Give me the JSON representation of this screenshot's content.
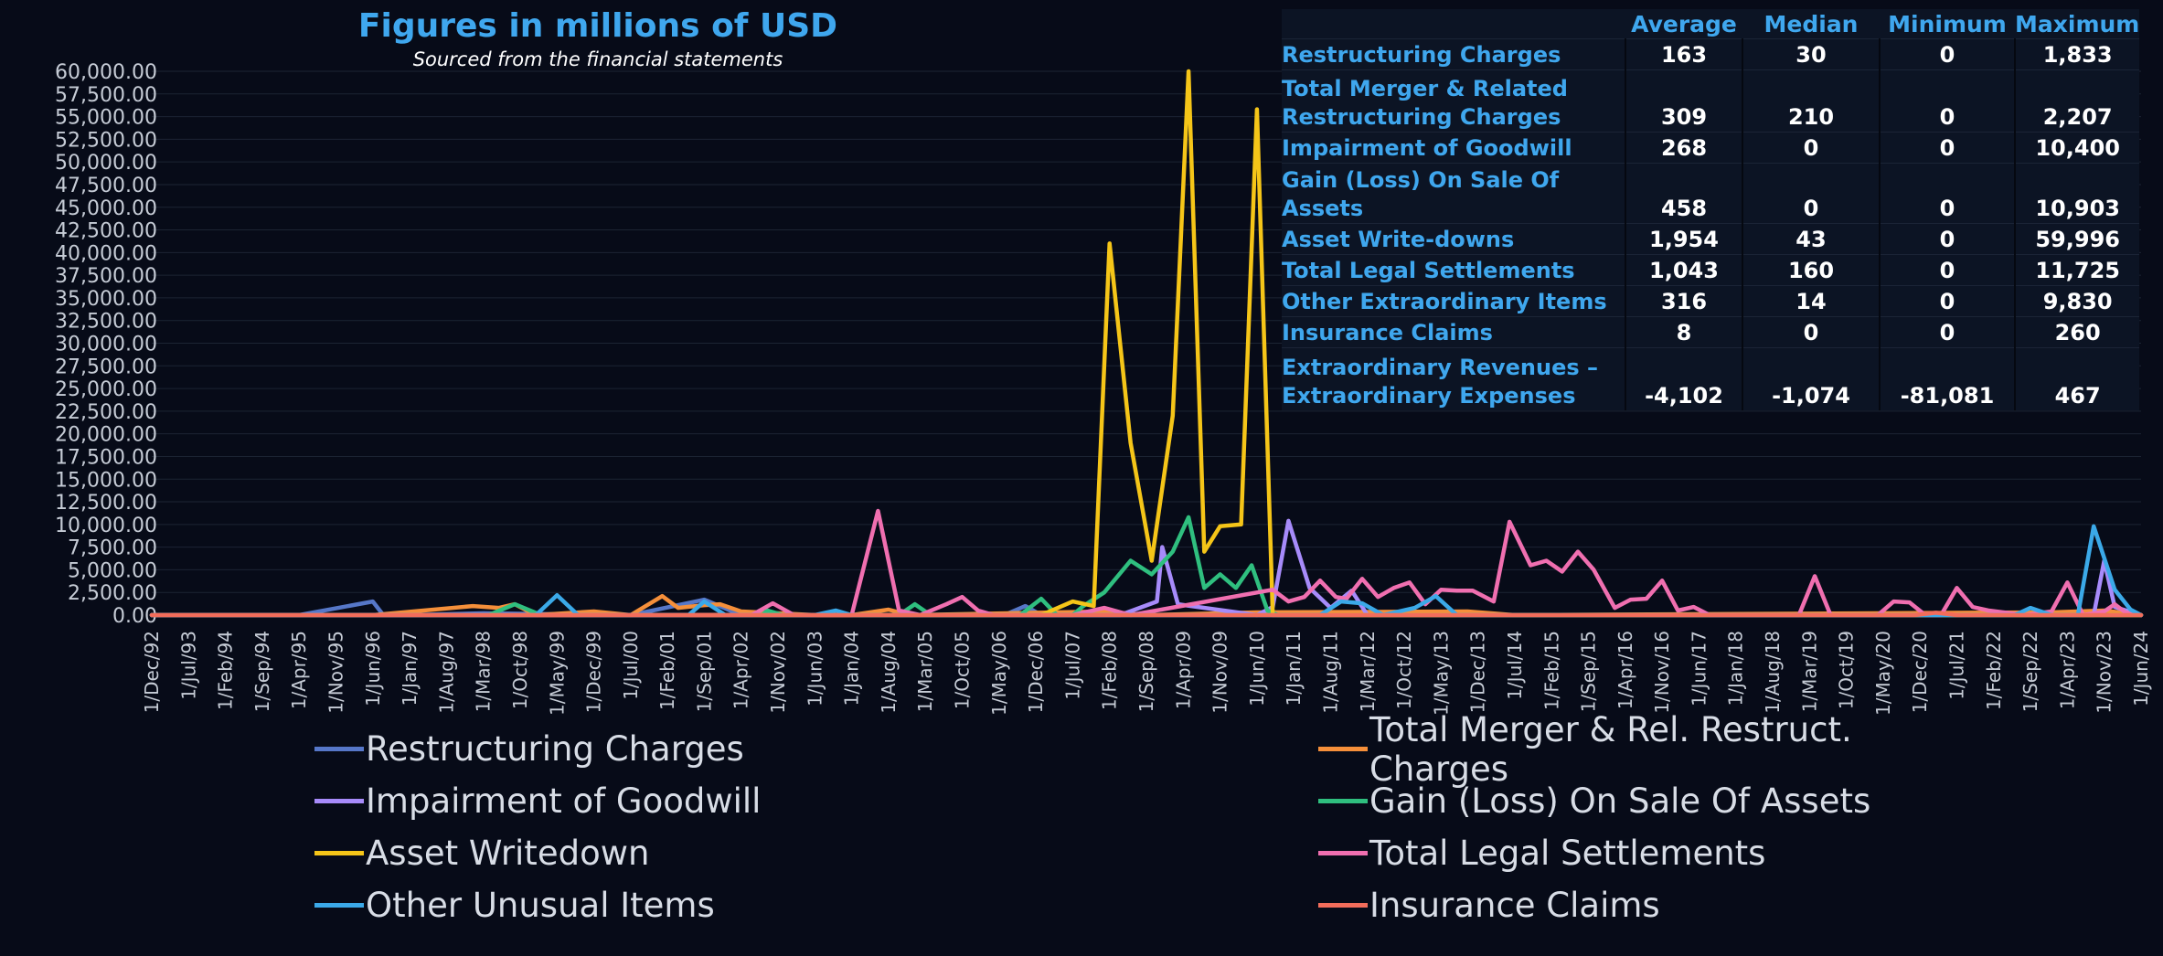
{
  "chart_data": {
    "type": "line",
    "title": "Figures in millions of USD",
    "subtitle": "Sourced from the financial statements",
    "ylim": [
      0,
      60000
    ],
    "y_ticks": [
      "0.00",
      "2,500.00",
      "5,000.00",
      "7,500.00",
      "10,000.00",
      "12,500.00",
      "15,000.00",
      "17,500.00",
      "20,000.00",
      "22,500.00",
      "25,000.00",
      "27,500.00",
      "30,000.00",
      "32,500.00",
      "35,000.00",
      "37,500.00",
      "40,000.00",
      "42,500.00",
      "45,000.00",
      "47,500.00",
      "50,000.00",
      "52,500.00",
      "55,000.00",
      "57,500.00",
      "60,000.00"
    ],
    "x_ticks": [
      "1/Dec/92",
      "1/Jul/93",
      "1/Feb/94",
      "1/Sep/94",
      "1/Apr/95",
      "1/Nov/95",
      "1/Jun/96",
      "1/Jan/97",
      "1/Aug/97",
      "1/Mar/98",
      "1/Oct/98",
      "1/May/99",
      "1/Dec/99",
      "1/Jul/00",
      "1/Feb/01",
      "1/Sep/01",
      "1/Apr/02",
      "1/Nov/02",
      "1/Jun/03",
      "1/Jan/04",
      "1/Aug/04",
      "1/Mar/05",
      "1/Oct/05",
      "1/May/06",
      "1/Dec/06",
      "1/Jul/07",
      "1/Feb/08",
      "1/Sep/08",
      "1/Apr/09",
      "1/Nov/09",
      "1/Jun/10",
      "1/Jan/11",
      "1/Aug/11",
      "1/Mar/12",
      "1/Oct/12",
      "1/May/13",
      "1/Dec/13",
      "1/Jul/14",
      "1/Feb/15",
      "1/Sep/15",
      "1/Apr/16",
      "1/Nov/16",
      "1/Jun/17",
      "1/Jan/18",
      "1/Aug/18",
      "1/Mar/19",
      "1/Oct/19",
      "1/May/20",
      "1/Dec/20",
      "1/Jul/21",
      "1/Feb/22",
      "1/Sep/22",
      "1/Apr/23",
      "1/Nov/23",
      "1/Jun/24"
    ],
    "grid": true,
    "legend_position": "bottom",
    "series": [
      {
        "name": "Restructuring Charges",
        "color": "#5677c8",
        "points": [
          [
            "1/Dec/92",
            0
          ],
          [
            "1/Apr/95",
            0
          ],
          [
            "1/Jun/96",
            1500
          ],
          [
            "1/Aug/96",
            0
          ],
          [
            "1/Jan/97",
            0
          ],
          [
            "1/Mar/98",
            200
          ],
          [
            "1/Jul/00",
            0
          ],
          [
            "1/Sep/01",
            1700
          ],
          [
            "1/Apr/02",
            0
          ],
          [
            "1/Jun/06",
            0
          ],
          [
            "1/Oct/06",
            1000
          ],
          [
            "1/Jan/07",
            0
          ],
          [
            "1/Jun/24",
            0
          ]
        ]
      },
      {
        "name": "Total Merger & Rel. Restruct. Charges",
        "color": "#f58f3a",
        "points": [
          [
            "1/Dec/92",
            0
          ],
          [
            "1/Jun/96",
            0
          ],
          [
            "1/Jan/98",
            1000
          ],
          [
            "1/Jun/98",
            800
          ],
          [
            "1/Sep/98",
            1200
          ],
          [
            "1/Jan/99",
            0
          ],
          [
            "1/Dec/99",
            400
          ],
          [
            "1/Jul/00",
            0
          ],
          [
            "1/Jan/01",
            2100
          ],
          [
            "1/Apr/01",
            800
          ],
          [
            "1/Sep/01",
            1100
          ],
          [
            "1/Dec/01",
            1200
          ],
          [
            "1/Apr/02",
            400
          ],
          [
            "1/Nov/02",
            200
          ],
          [
            "1/Jun/03",
            0
          ],
          [
            "1/Jan/04",
            0
          ],
          [
            "1/Aug/04",
            600
          ],
          [
            "1/Dec/04",
            0
          ],
          [
            "1/Jan/08",
            400
          ],
          [
            "1/Sep/08",
            0
          ],
          [
            "1/Jun/10",
            300
          ],
          [
            "1/Oct/13",
            400
          ],
          [
            "1/Jul/14",
            0
          ],
          [
            "1/Jan/23",
            300
          ],
          [
            "1/Nov/23",
            500
          ],
          [
            "1/Jun/24",
            0
          ]
        ]
      },
      {
        "name": "Impairment of Goodwill",
        "color": "#a78bfa",
        "points": [
          [
            "1/Dec/92",
            0
          ],
          [
            "1/Apr/08",
            0
          ],
          [
            "1/Nov/08",
            1500
          ],
          [
            "1/Dec/08",
            7500
          ],
          [
            "1/Mar/09",
            1200
          ],
          [
            "1/Jun/10",
            0
          ],
          [
            "1/Sep/10",
            900
          ],
          [
            "1/Dec/10",
            10400
          ],
          [
            "1/Apr/11",
            3000
          ],
          [
            "1/Aug/11",
            800
          ],
          [
            "1/Dec/11",
            2700
          ],
          [
            "1/Mar/12",
            0
          ],
          [
            "1/Sep/23",
            0
          ],
          [
            "1/Nov/23",
            6000
          ],
          [
            "1/Jan/24",
            900
          ],
          [
            "1/Jun/24",
            0
          ]
        ]
      },
      {
        "name": "Gain (Loss) On Sale Of Assets",
        "color": "#2fbf7f",
        "points": [
          [
            "1/Dec/92",
            0
          ],
          [
            "1/Apr/98",
            0
          ],
          [
            "1/Sep/98",
            1200
          ],
          [
            "1/Feb/99",
            0
          ],
          [
            "1/Aug/02",
            0
          ],
          [
            "1/Sep/02",
            500
          ],
          [
            "1/Dec/02",
            0
          ],
          [
            "1/Oct/04",
            0
          ],
          [
            "1/Jan/05",
            1200
          ],
          [
            "1/Apr/05",
            0
          ],
          [
            "1/Sep/06",
            0
          ],
          [
            "1/Jan/07",
            1800
          ],
          [
            "1/Apr/07",
            0
          ],
          [
            "1/Jul/07",
            0
          ],
          [
            "1/Sep/07",
            1000
          ],
          [
            "1/Jan/08",
            2500
          ],
          [
            "1/Jun/08",
            6000
          ],
          [
            "1/Oct/08",
            4500
          ],
          [
            "1/Feb/09",
            7000
          ],
          [
            "1/May/09",
            10800
          ],
          [
            "1/Aug/09",
            3000
          ],
          [
            "1/Nov/09",
            4500
          ],
          [
            "1/Feb/10",
            3000
          ],
          [
            "1/May/10",
            5500
          ],
          [
            "1/Aug/10",
            500
          ],
          [
            "1/Oct/10",
            0
          ],
          [
            "1/Jun/24",
            0
          ]
        ]
      },
      {
        "name": "Asset Writedown",
        "color": "#f5c518",
        "points": [
          [
            "1/Dec/92",
            0
          ],
          [
            "1/Jan/07",
            0
          ],
          [
            "1/Jul/07",
            1500
          ],
          [
            "1/Nov/07",
            1000
          ],
          [
            "1/Feb/08",
            41000
          ],
          [
            "1/Jun/08",
            19000
          ],
          [
            "1/Oct/08",
            6000
          ],
          [
            "1/Feb/09",
            22000
          ],
          [
            "1/May/09",
            60000
          ],
          [
            "1/Aug/09",
            7000
          ],
          [
            "1/Nov/09",
            9800
          ],
          [
            "1/Mar/10",
            10000
          ],
          [
            "1/Jun/10",
            55800
          ],
          [
            "1/Sep/10",
            0
          ],
          [
            "1/Jun/24",
            0
          ]
        ]
      },
      {
        "name": "Total Legal Settlements",
        "color": "#f06fb0",
        "points": [
          [
            "1/Dec/92",
            0
          ],
          [
            "1/Jun/02",
            0
          ],
          [
            "1/Oct/02",
            1300
          ],
          [
            "1/Feb/03",
            0
          ],
          [
            "1/Jan/04",
            0
          ],
          [
            "1/Jun/04",
            11500
          ],
          [
            "1/Oct/04",
            500
          ],
          [
            "1/Feb/05",
            0
          ],
          [
            "1/Jul/05",
            1200
          ],
          [
            "1/Oct/05",
            2000
          ],
          [
            "1/Jan/06",
            500
          ],
          [
            "1/Apr/06",
            0
          ],
          [
            "1/Jul/07",
            0
          ],
          [
            "1/Jan/08",
            800
          ],
          [
            "1/Jun/08",
            0
          ],
          [
            "1/Sep/10",
            2800
          ],
          [
            "1/Dec/10",
            1500
          ],
          [
            "1/Mar/11",
            2000
          ],
          [
            "1/Jun/11",
            3800
          ],
          [
            "1/Sep/11",
            2000
          ],
          [
            "1/Nov/11",
            1800
          ],
          [
            "1/Feb/12",
            4000
          ],
          [
            "1/May/12",
            2000
          ],
          [
            "1/Aug/12",
            3000
          ],
          [
            "1/Nov/12",
            3600
          ],
          [
            "1/Feb/13",
            1200
          ],
          [
            "1/May/13",
            2800
          ],
          [
            "1/Aug/13",
            2700
          ],
          [
            "1/Nov/13",
            2700
          ],
          [
            "1/Mar/14",
            1500
          ],
          [
            "1/Jun/14",
            10300
          ],
          [
            "1/Oct/14",
            5500
          ],
          [
            "1/Jan/15",
            6000
          ],
          [
            "1/Apr/15",
            4800
          ],
          [
            "1/Jul/15",
            7000
          ],
          [
            "1/Oct/15",
            5000
          ],
          [
            "1/Feb/16",
            800
          ],
          [
            "1/May/16",
            1700
          ],
          [
            "1/Aug/16",
            1800
          ],
          [
            "1/Nov/16",
            3800
          ],
          [
            "1/Feb/17",
            500
          ],
          [
            "1/May/17",
            900
          ],
          [
            "1/Aug/17",
            0
          ],
          [
            "1/Jan/19",
            0
          ],
          [
            "1/Apr/19",
            4300
          ],
          [
            "1/Jul/19",
            0
          ],
          [
            "1/Apr/20",
            0
          ],
          [
            "1/Jul/20",
            1500
          ],
          [
            "1/Oct/20",
            1400
          ],
          [
            "1/Jan/21",
            0
          ],
          [
            "1/Apr/21",
            0
          ],
          [
            "1/Jul/21",
            3000
          ],
          [
            "1/Oct/21",
            900
          ],
          [
            "1/Jan/22",
            500
          ],
          [
            "1/Aug/22",
            0
          ],
          [
            "1/Jan/23",
            400
          ],
          [
            "1/Apr/23",
            3600
          ],
          [
            "1/Jul/23",
            0
          ],
          [
            "1/Nov/23",
            400
          ],
          [
            "1/Jan/24",
            1200
          ],
          [
            "1/Mar/24",
            300
          ],
          [
            "1/Jun/24",
            0
          ]
        ]
      },
      {
        "name": "Other Unusual Items",
        "color": "#3ba9e8",
        "points": [
          [
            "1/Dec/92",
            0
          ],
          [
            "1/Jan/99",
            0
          ],
          [
            "1/May/99",
            2200
          ],
          [
            "1/Sep/99",
            0
          ],
          [
            "1/Jun/01",
            0
          ],
          [
            "1/Sep/01",
            1500
          ],
          [
            "1/Jan/02",
            0
          ],
          [
            "1/Jun/03",
            0
          ],
          [
            "1/Oct/03",
            500
          ],
          [
            "1/Jan/04",
            0
          ],
          [
            "1/Jun/11",
            0
          ],
          [
            "1/Oct/11",
            1500
          ],
          [
            "1/Feb/12",
            1300
          ],
          [
            "1/Jun/12",
            0
          ],
          [
            "1/Dec/12",
            800
          ],
          [
            "1/Apr/13",
            2100
          ],
          [
            "1/Aug/13",
            0
          ],
          [
            "1/Jun/22",
            0
          ],
          [
            "1/Sep/22",
            800
          ],
          [
            "1/Jan/23",
            0
          ],
          [
            "1/Jun/23",
            0
          ],
          [
            "1/Sep/23",
            9800
          ],
          [
            "1/Jan/24",
            2800
          ],
          [
            "1/Apr/24",
            600
          ],
          [
            "1/Jun/24",
            0
          ]
        ]
      },
      {
        "name": "Insurance Claims",
        "color": "#f26d5b",
        "points": [
          [
            "1/Dec/92",
            0
          ],
          [
            "1/Nov/20",
            0
          ],
          [
            "1/Mar/21",
            260
          ],
          [
            "1/Jul/21",
            0
          ],
          [
            "1/Jun/24",
            0
          ]
        ]
      }
    ]
  },
  "stats_table": {
    "headers": [
      "",
      "Average",
      "Median",
      "Minimum",
      "Maximum"
    ],
    "rows": [
      {
        "label": "Restructuring Charges",
        "values": [
          "163",
          "30",
          "0",
          "1,833"
        ]
      },
      {
        "label": "Total Merger & Related Restructuring Charges",
        "values": [
          "309",
          "210",
          "0",
          "2,207"
        ]
      },
      {
        "label": "Impairment of Goodwill",
        "values": [
          "268",
          "0",
          "0",
          "10,400"
        ]
      },
      {
        "label": "Gain (Loss) On Sale Of Assets",
        "values": [
          "458",
          "0",
          "0",
          "10,903"
        ]
      },
      {
        "label": "Asset Write-downs",
        "values": [
          "1,954",
          "43",
          "0",
          "59,996"
        ]
      },
      {
        "label": "Total Legal Settlements",
        "values": [
          "1,043",
          "160",
          "0",
          "11,725"
        ]
      },
      {
        "label": "Other Extraordinary Items",
        "values": [
          "316",
          "14",
          "0",
          "9,830"
        ]
      },
      {
        "label": "Insurance Claims",
        "values": [
          "8",
          "0",
          "0",
          "260"
        ]
      },
      {
        "label": "Extraordinary Revenues – Extraordinary Expenses",
        "values": [
          "-4,102",
          "-1,074",
          "-81,081",
          "467"
        ]
      }
    ]
  },
  "legend": [
    {
      "label": "Restructuring Charges",
      "color": "#5677c8"
    },
    {
      "label": "Total Merger & Rel. Restruct. Charges",
      "color": "#f58f3a"
    },
    {
      "label": "Impairment of Goodwill",
      "color": "#a78bfa"
    },
    {
      "label": "Gain (Loss) On Sale Of Assets",
      "color": "#2fbf7f"
    },
    {
      "label": "Asset Writedown",
      "color": "#f5c518"
    },
    {
      "label": "Total Legal Settlements",
      "color": "#f06fb0"
    },
    {
      "label": "Other Unusual Items",
      "color": "#3ba9e8"
    },
    {
      "label": "Insurance Claims",
      "color": "#f26d5b"
    }
  ]
}
